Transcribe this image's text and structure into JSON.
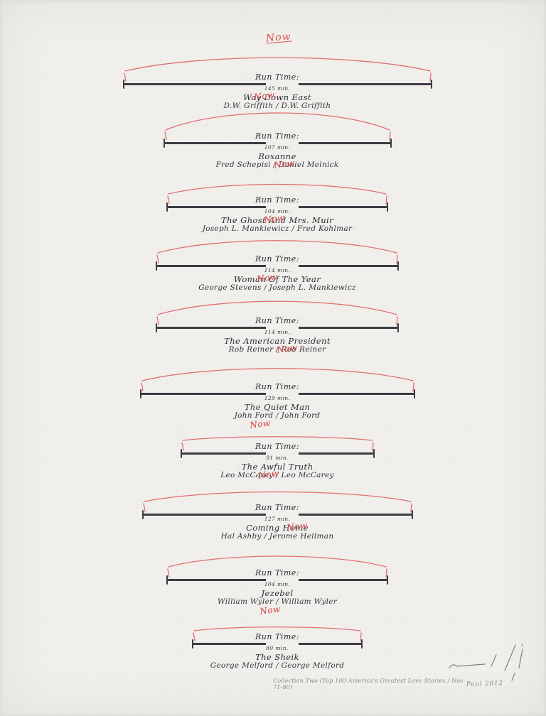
{
  "artwork": {
    "top_annotation": "Now",
    "caption": "Collection Two (Top 100 America's Greatest Love Stories / Nos 71-80)",
    "signature": "Paul 2012",
    "marks": {
      "signature_scrawl": "pencil-scrawl-with-edition-stroke"
    },
    "colors": {
      "paper": "#f0efec",
      "ink": "#3c3c42",
      "red": "#d94f4f",
      "pencil": "#8b8b8b"
    }
  },
  "films": [
    {
      "runtime_label": "Run Time:",
      "runtime": "145 min.",
      "runtime_minutes": 145,
      "title": "Way Down East",
      "credits": "D.W. Griffith / D.W. Griffith",
      "now": "Now",
      "now_placement": "title",
      "now_dx": -18
    },
    {
      "runtime_label": "Run Time:",
      "runtime": "107 min.",
      "runtime_minutes": 107,
      "title": "Roxanne",
      "credits": "Fred Schepisi / Daniel Melnick",
      "now": "Now",
      "now_placement": "slash",
      "now_dx": 10
    },
    {
      "runtime_label": "Run Time:",
      "runtime": "104 min.",
      "runtime_minutes": 104,
      "title": "The Ghost And Mrs. Muir",
      "credits": "Joseph L. Mankiewicz / Fred Kohlmar",
      "now": "Now",
      "now_placement": "title",
      "now_dx": -4
    },
    {
      "runtime_label": "Run Time:",
      "runtime": "114 min.",
      "runtime_minutes": 114,
      "title": "Woman Of The Year",
      "credits": "George Stevens / Joseph L. Mankiewicz",
      "now": "Now",
      "now_placement": "title",
      "now_dx": -14
    },
    {
      "runtime_label": "Run Time:",
      "runtime": "114 min.",
      "runtime_minutes": 114,
      "title": "The American President",
      "credits": "Rob Reiner / Rob Reiner",
      "now": "Now",
      "now_placement": "slash",
      "now_dx": 14
    },
    {
      "runtime_label": "Run Time:",
      "runtime": "129 min.",
      "runtime_minutes": 129,
      "title": "The Quiet Man",
      "credits": "John Ford / John Ford",
      "now": "Now",
      "now_placement": "below",
      "now_dx": -24
    },
    {
      "runtime_label": "Run Time:",
      "runtime": "91 min.",
      "runtime_minutes": 91,
      "title": "The Awful Truth",
      "credits": "Leo McCarey / Leo McCarey",
      "now": "Now",
      "now_placement": "slash",
      "now_dx": -12
    },
    {
      "runtime_label": "Run Time:",
      "runtime": "127 min.",
      "runtime_minutes": 127,
      "title": "Coming Home",
      "credits": "Hal Ashby / Jerome Hellman",
      "now": "Now",
      "now_placement": "title",
      "now_dx": 28
    },
    {
      "runtime_label": "Run Time:",
      "runtime": "104 min.",
      "runtime_minutes": 104,
      "title": "Jezebel",
      "credits": "William Wyler / William Wyler",
      "now": "Now",
      "now_placement": "below",
      "now_dx": -10
    },
    {
      "runtime_label": "Run Time:",
      "runtime": "80 min.",
      "runtime_minutes": 80,
      "title": "The Sheik",
      "credits": "George Melford / George Melford",
      "now": "",
      "now_placement": "none",
      "now_dx": 0
    }
  ]
}
